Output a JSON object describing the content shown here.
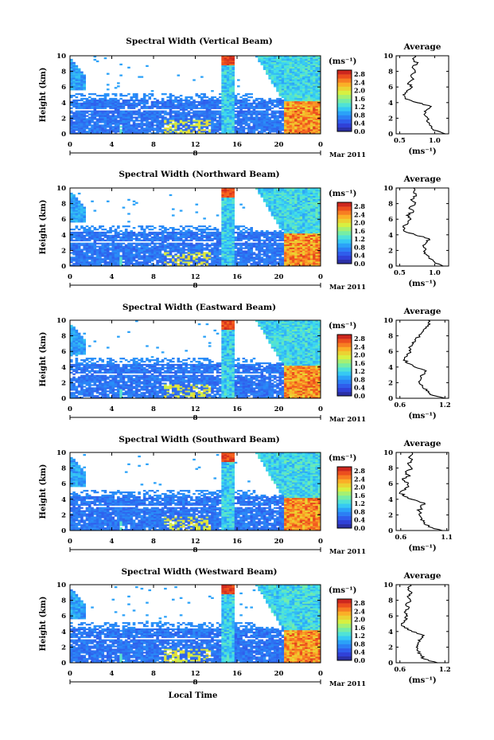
{
  "chart_data": [
    {
      "type": "heatmap",
      "title": "Spectral Width (Vertical Beam)",
      "ylabel": "Height (km)",
      "ylim": [
        0,
        10
      ],
      "xlim": [
        0,
        24
      ],
      "x_ticks": [
        "0",
        "4",
        "8",
        "12",
        "16",
        "20",
        "0"
      ],
      "y_ticks": [
        "0",
        "2",
        "4",
        "6",
        "8",
        "10"
      ],
      "date_marker": "8",
      "date_label": "Mar 2011",
      "colorbar": {
        "unit": "(ms⁻¹)",
        "range": [
          0,
          3.0
        ],
        "ticks": [
          "0.0",
          "0.4",
          "0.8",
          "1.2",
          "1.6",
          "2.0",
          "2.4",
          "2.8"
        ]
      },
      "profile": {
        "title": "Average",
        "xlabel": "(ms⁻¹)",
        "x_ticks": [
          "0.5",
          "1.0"
        ],
        "xlim": [
          0.45,
          1.2
        ],
        "ylim": [
          0,
          10
        ],
        "y_ticks": [
          "0",
          "2",
          "4",
          "6",
          "8",
          "10"
        ],
        "height": [
          0,
          0.5,
          1.0,
          1.5,
          2.0,
          2.5,
          3.0,
          3.5,
          4.0,
          4.5,
          5.0,
          5.5,
          6.0,
          6.5,
          7.0,
          7.5,
          8.0,
          8.5,
          9.0,
          9.5,
          10.0
        ],
        "width": [
          1.15,
          0.98,
          0.95,
          0.9,
          0.9,
          0.85,
          0.88,
          0.95,
          0.75,
          0.58,
          0.55,
          0.6,
          0.68,
          0.62,
          0.7,
          0.66,
          0.72,
          0.68,
          0.75,
          0.7,
          0.72
        ]
      }
    },
    {
      "type": "heatmap",
      "title": "Spectral Width (Northward Beam)",
      "ylabel": "Height (km)",
      "ylim": [
        0,
        10
      ],
      "xlim": [
        0,
        24
      ],
      "x_ticks": [
        "0",
        "4",
        "8",
        "12",
        "16",
        "20",
        "0"
      ],
      "y_ticks": [
        "0",
        "2",
        "4",
        "6",
        "8",
        "10"
      ],
      "date_marker": "8",
      "date_label": "Mar 2011",
      "colorbar": {
        "unit": "(ms⁻¹)",
        "range": [
          0,
          3.0
        ],
        "ticks": [
          "0.0",
          "0.4",
          "0.8",
          "1.2",
          "1.6",
          "2.0",
          "2.4",
          "2.8"
        ]
      },
      "profile": {
        "title": "Average",
        "xlabel": "(ms⁻¹)",
        "x_ticks": [
          "0.5",
          "1.0"
        ],
        "xlim": [
          0.45,
          1.2
        ],
        "ylim": [
          0,
          10
        ],
        "y_ticks": [
          "0",
          "2",
          "4",
          "6",
          "8",
          "10"
        ],
        "height": [
          0,
          0.5,
          1.0,
          1.5,
          2.0,
          2.5,
          3.0,
          3.5,
          4.0,
          4.5,
          5.0,
          5.5,
          6.0,
          6.5,
          7.0,
          7.5,
          8.0,
          8.5,
          9.0,
          9.5,
          10.0
        ],
        "width": [
          1.12,
          1.0,
          0.92,
          0.88,
          0.86,
          0.84,
          0.88,
          0.92,
          0.72,
          0.56,
          0.55,
          0.62,
          0.66,
          0.6,
          0.7,
          0.64,
          0.72,
          0.66,
          0.74,
          0.7,
          0.7
        ]
      }
    },
    {
      "type": "heatmap",
      "title": "Spectral Width (Eastward Beam)",
      "ylabel": "Height (km)",
      "ylim": [
        0,
        10
      ],
      "xlim": [
        0,
        24
      ],
      "x_ticks": [
        "0",
        "4",
        "8",
        "12",
        "16",
        "20",
        "0"
      ],
      "y_ticks": [
        "0",
        "2",
        "4",
        "6",
        "8",
        "10"
      ],
      "date_marker": "8",
      "date_label": "Mar 2011",
      "colorbar": {
        "unit": "(ms⁻¹)",
        "range": [
          0,
          3.0
        ],
        "ticks": [
          "0.0",
          "0.4",
          "0.8",
          "1.2",
          "1.6",
          "2.0",
          "2.4",
          "2.8"
        ]
      },
      "profile": {
        "title": "Average",
        "xlabel": "(ms⁻¹)",
        "x_ticks": [
          "0.6",
          "1.2"
        ],
        "xlim": [
          0.55,
          1.25
        ],
        "ylim": [
          0,
          10
        ],
        "y_ticks": [
          "0",
          "2",
          "4",
          "6",
          "8",
          "10"
        ],
        "height": [
          0,
          0.5,
          1.0,
          1.5,
          2.0,
          2.5,
          3.0,
          3.5,
          4.0,
          4.5,
          5.0,
          5.5,
          6.0,
          6.5,
          7.0,
          7.5,
          8.0,
          8.5,
          9.0,
          9.5,
          10.0
        ],
        "width": [
          1.2,
          1.0,
          0.95,
          0.9,
          0.86,
          0.88,
          0.9,
          0.95,
          0.8,
          0.7,
          0.66,
          0.7,
          0.74,
          0.72,
          0.78,
          0.8,
          0.86,
          0.9,
          0.95,
          1.0,
          0.98
        ]
      }
    },
    {
      "type": "heatmap",
      "title": "Spectral Width (Southward Beam)",
      "ylabel": "Height (km)",
      "ylim": [
        0,
        10
      ],
      "xlim": [
        0,
        24
      ],
      "x_ticks": [
        "0",
        "4",
        "8",
        "12",
        "16",
        "20",
        "0"
      ],
      "y_ticks": [
        "0",
        "2",
        "4",
        "6",
        "8",
        "10"
      ],
      "date_marker": "8",
      "date_label": "Mar 2011",
      "colorbar": {
        "unit": "(ms⁻¹)",
        "range": [
          0,
          3.0
        ],
        "ticks": [
          "0.0",
          "0.4",
          "0.8",
          "1.2",
          "1.6",
          "2.0",
          "2.4",
          "2.8"
        ]
      },
      "profile": {
        "title": "Average",
        "xlabel": "(ms⁻¹)",
        "x_ticks": [
          "0.6",
          "1.1"
        ],
        "xlim": [
          0.55,
          1.12
        ],
        "ylim": [
          0,
          10
        ],
        "y_ticks": [
          "0",
          "2",
          "4",
          "6",
          "8",
          "10"
        ],
        "height": [
          0,
          0.5,
          1.0,
          1.5,
          2.0,
          2.5,
          3.0,
          3.5,
          4.0,
          4.5,
          5.0,
          5.5,
          6.0,
          6.5,
          7.0,
          7.5,
          8.0,
          8.5,
          9.0,
          9.5,
          10.0
        ],
        "width": [
          1.05,
          0.9,
          0.86,
          0.83,
          0.8,
          0.8,
          0.82,
          0.86,
          0.72,
          0.62,
          0.6,
          0.66,
          0.68,
          0.62,
          0.7,
          0.65,
          0.72,
          0.68,
          0.72,
          0.7,
          0.72
        ]
      }
    },
    {
      "type": "heatmap",
      "title": "Spectral Width (Westward Beam)",
      "ylabel": "Height (km)",
      "xlabel": "Local Time",
      "ylim": [
        0,
        10
      ],
      "xlim": [
        0,
        24
      ],
      "x_ticks": [
        "0",
        "4",
        "8",
        "12",
        "16",
        "20",
        "0"
      ],
      "y_ticks": [
        "0",
        "2",
        "4",
        "6",
        "8",
        "10"
      ],
      "date_marker": "8",
      "date_label": "Mar 2011",
      "colorbar": {
        "unit": "(ms⁻¹)",
        "range": [
          0,
          3.0
        ],
        "ticks": [
          "0.0",
          "0.4",
          "0.8",
          "1.2",
          "1.6",
          "2.0",
          "2.4",
          "2.8"
        ]
      },
      "profile": {
        "title": "Average",
        "xlabel": "(ms⁻¹)",
        "x_ticks": [
          "0.6",
          "1.2"
        ],
        "xlim": [
          0.55,
          1.25
        ],
        "ylim": [
          0,
          10
        ],
        "y_ticks": [
          "0",
          "2",
          "4",
          "6",
          "8",
          "10"
        ],
        "height": [
          0,
          0.5,
          1.0,
          1.5,
          2.0,
          2.5,
          3.0,
          3.5,
          4.0,
          4.5,
          5.0,
          5.5,
          6.0,
          6.5,
          7.0,
          7.5,
          8.0,
          8.5,
          9.0,
          9.5,
          10.0
        ],
        "width": [
          1.1,
          0.92,
          0.88,
          0.84,
          0.82,
          0.84,
          0.88,
          0.92,
          0.76,
          0.66,
          0.62,
          0.68,
          0.7,
          0.66,
          0.72,
          0.68,
          0.74,
          0.7,
          0.76,
          0.72,
          0.74
        ]
      }
    }
  ]
}
